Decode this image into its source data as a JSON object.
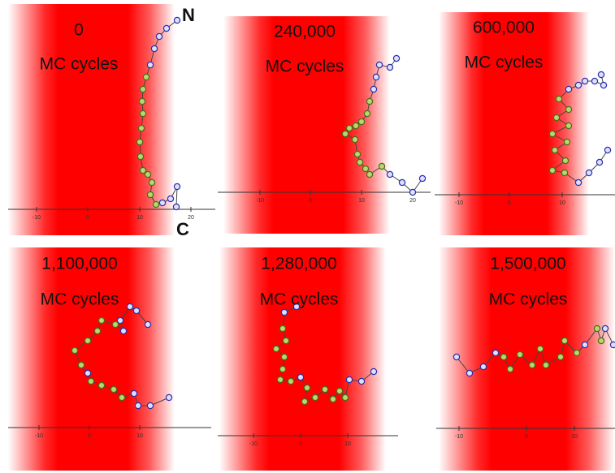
{
  "panels": [
    {
      "cycles": "0",
      "unit": "MC cycles",
      "ticks": [
        "-10",
        "0",
        "10",
        "20"
      ]
    },
    {
      "cycles": "240,000",
      "unit": "MC cycles",
      "ticks": [
        "-10",
        "0",
        "10",
        "20"
      ]
    },
    {
      "cycles": "600,000",
      "unit": "MC cycles",
      "ticks": [
        "-10",
        "0",
        "10"
      ]
    },
    {
      "cycles": "1,100,000",
      "unit": "MC cycles",
      "ticks": [
        "-10",
        "0",
        "10"
      ]
    },
    {
      "cycles": "1,280,000",
      "unit": "MC cycles",
      "ticks": [
        "-10",
        "0",
        "10"
      ]
    },
    {
      "cycles": "1,500,000",
      "unit": "MC cycles",
      "ticks": [
        "-10",
        "0",
        "10"
      ]
    }
  ],
  "terminals": {
    "n": "N",
    "c": "C"
  }
}
